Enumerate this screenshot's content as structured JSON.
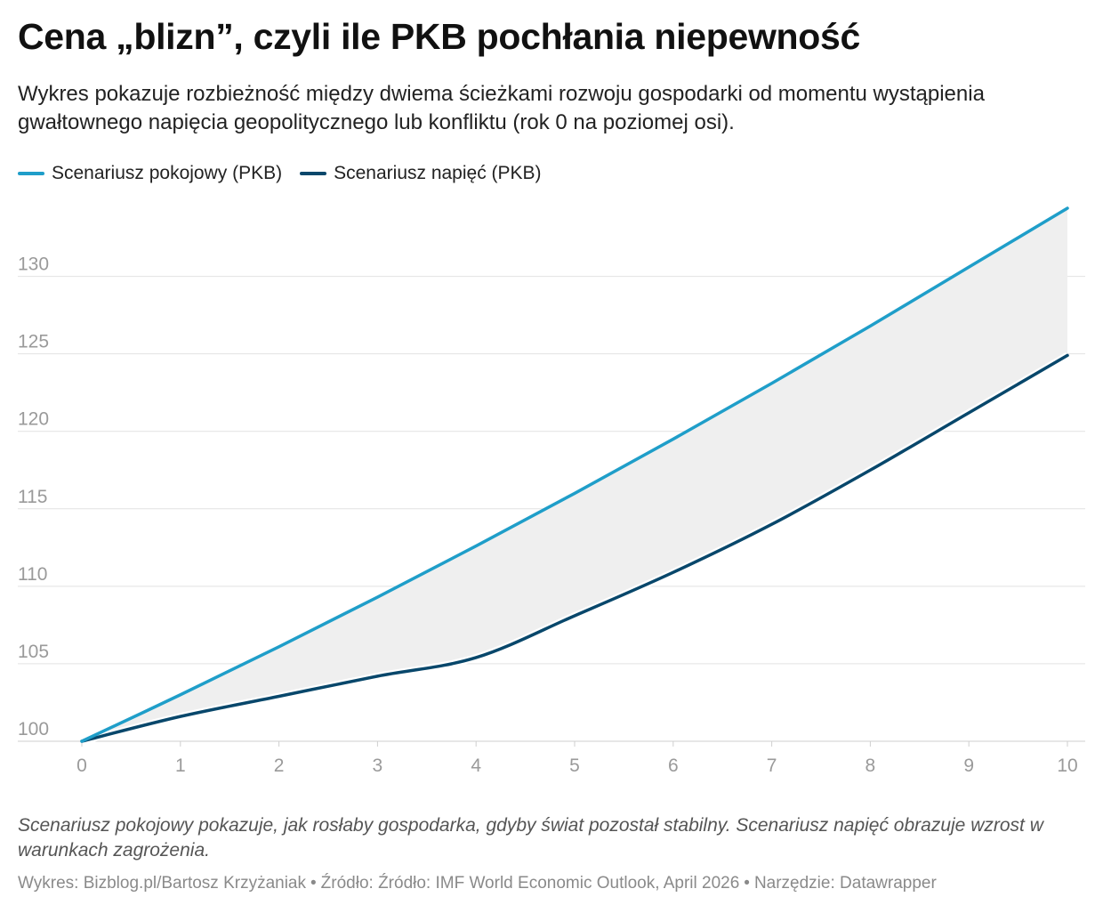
{
  "header": {
    "title": "Cena „blizn”, czyli ile PKB pochłania niepewność",
    "subtitle": "Wykres pokazuje rozbieżność między dwiema ścieżkami rozwoju gospodarki od momentu wystąpienia gwałtownego napięcia geopolitycznego lub konfliktu (rok 0 na poziomej osi)."
  },
  "colors": {
    "peace": "#1f9ec9",
    "tension": "#08476b",
    "fill": "#efefef",
    "grid": "#e2e2e2",
    "tick": "#9a9a9a"
  },
  "chart_data": {
    "type": "line",
    "title": "Cena „blizn”, czyli ile PKB pochłania niepewność",
    "xlabel": "",
    "ylabel": "",
    "x": [
      0,
      1,
      2,
      3,
      4,
      5,
      6,
      7,
      8,
      9,
      10
    ],
    "xticks": [
      0,
      1,
      2,
      3,
      4,
      5,
      6,
      7,
      8,
      9,
      10
    ],
    "yticks": [
      100,
      105,
      110,
      115,
      120,
      125,
      130
    ],
    "xlim": [
      0,
      10
    ],
    "ylim": [
      100,
      134.4
    ],
    "grid": true,
    "legend_position": "top-left",
    "shaded_area_between_series": true,
    "series": [
      {
        "name": "Scenariusz pokojowy (PKB)",
        "values": [
          100,
          103.0,
          106.1,
          109.3,
          112.6,
          116.0,
          119.5,
          123.1,
          126.8,
          130.6,
          134.4
        ]
      },
      {
        "name": "Scenariusz napięć (PKB)",
        "values": [
          100,
          101.6,
          102.9,
          104.2,
          105.4,
          108.1,
          110.9,
          114.0,
          117.5,
          121.2,
          124.9
        ]
      }
    ]
  },
  "footnote": {
    "note": "Scenariusz pokojowy pokazuje, jak rosłaby gospodarka, gdyby świat pozostał stabilny. Scenariusz napięć obrazuje wzrost w warunkach zagrożenia.",
    "credit": "Wykres: Bizblog.pl/Bartosz Krzyżaniak",
    "source": "Źródło: Źródło: IMF World Economic Outlook, April 2026",
    "tool": "Narzędzie: Datawrapper",
    "separator": "•"
  }
}
